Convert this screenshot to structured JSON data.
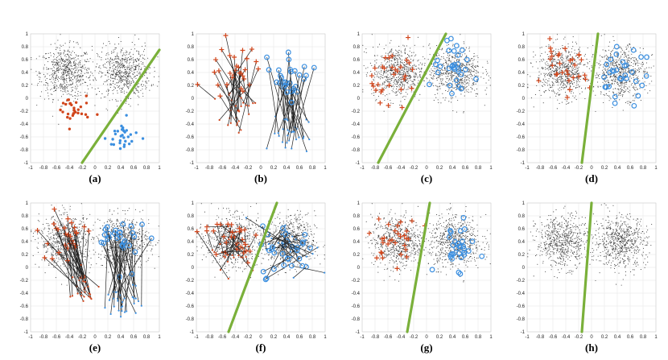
{
  "figure": {
    "description_labels": [
      "(a)",
      "(b)",
      "(c)",
      "(d)",
      "(e)",
      "(f)",
      "(g)",
      "(h)"
    ]
  },
  "colors": {
    "background_points": "#3a3a3a",
    "red": "#d1451b",
    "blue": "#3b8fe0",
    "boundary": "#7ab03a",
    "grid": "#e6e6e6",
    "arrow": "#222222"
  },
  "chart_data": [
    {
      "id": "a",
      "label": "(a)",
      "type": "scatter",
      "xlim": [
        -1,
        1
      ],
      "ylim": [
        -1,
        1
      ],
      "xticks": [
        -1,
        -0.8,
        -0.6,
        -0.4,
        -0.2,
        0,
        0.2,
        0.4,
        0.6,
        0.8,
        1
      ],
      "yticks": [
        1,
        0.8,
        0.6,
        0.4,
        0.2,
        0,
        -0.2,
        -0.4,
        -0.6,
        -0.8,
        -1
      ],
      "background_clusters": [
        {
          "cx": -0.45,
          "cy": 0.4,
          "spread": 0.2
        },
        {
          "cx": 0.45,
          "cy": 0.4,
          "spread": 0.2
        }
      ],
      "boundary": {
        "x1": -0.2,
        "y1": -1.0,
        "x2": 1.0,
        "y2": 0.75
      },
      "red_class": {
        "marker": "dot",
        "center": [
          -0.35,
          -0.2
        ],
        "spread": [
          0.13,
          0.13
        ]
      },
      "blue_class": {
        "marker": "dot",
        "center": [
          0.45,
          -0.6
        ],
        "spread": [
          0.13,
          0.13
        ]
      }
    },
    {
      "id": "b",
      "label": "(b)",
      "type": "scatter",
      "xlim": [
        -1,
        1
      ],
      "ylim": [
        -1,
        1
      ],
      "xticks": [
        -1,
        -0.8,
        -0.6,
        -0.4,
        -0.2,
        0,
        0.2,
        0.4,
        0.6,
        0.8,
        1
      ],
      "yticks": [
        1,
        0.8,
        0.6,
        0.4,
        0.2,
        0,
        -0.2,
        -0.4,
        -0.6,
        -0.8,
        -1
      ],
      "background_clusters": [],
      "boundary": null,
      "red_class": {
        "marker": "plus",
        "center": [
          -0.45,
          0.45
        ],
        "spread": [
          0.2,
          0.2
        ],
        "arrow_from": [
          -0.35,
          -0.2
        ],
        "arrow_spread": [
          0.12,
          0.15
        ]
      },
      "blue_class": {
        "marker": "circle",
        "center": [
          0.45,
          0.4
        ],
        "spread": [
          0.2,
          0.2
        ],
        "arrow_from": [
          0.45,
          -0.55
        ],
        "arrow_spread": [
          0.14,
          0.15
        ]
      }
    },
    {
      "id": "c",
      "label": "(c)",
      "type": "scatter",
      "xlim": [
        -1,
        1
      ],
      "ylim": [
        -1,
        1
      ],
      "xticks": [
        -1,
        -0.8,
        -0.6,
        -0.4,
        -0.2,
        0,
        0.2,
        0.4,
        0.6,
        0.8,
        1
      ],
      "yticks": [
        1,
        0.8,
        0.6,
        0.4,
        0.2,
        0,
        -0.2,
        -0.4,
        -0.6,
        -0.8,
        -1
      ],
      "background_clusters": [
        {
          "cx": -0.45,
          "cy": 0.4,
          "spread": 0.2
        },
        {
          "cx": 0.45,
          "cy": 0.4,
          "spread": 0.2
        }
      ],
      "boundary": {
        "x1": -0.75,
        "y1": -1.0,
        "x2": 0.3,
        "y2": 1.0
      },
      "red_class": {
        "marker": "plus",
        "center": [
          -0.45,
          0.4
        ],
        "spread": [
          0.2,
          0.2
        ]
      },
      "blue_class": {
        "marker": "circle",
        "center": [
          0.45,
          0.4
        ],
        "spread": [
          0.2,
          0.2
        ]
      }
    },
    {
      "id": "d",
      "label": "(d)",
      "type": "scatter",
      "xlim": [
        -1,
        1
      ],
      "ylim": [
        -1,
        1
      ],
      "xticks": [
        -1,
        -0.8,
        -0.6,
        -0.4,
        -0.2,
        0,
        0.2,
        0.4,
        0.6,
        0.8,
        1
      ],
      "yticks": [
        1,
        0.8,
        0.6,
        0.4,
        0.2,
        0,
        -0.2,
        -0.4,
        -0.6,
        -0.8,
        -1
      ],
      "background_clusters": [
        {
          "cx": -0.45,
          "cy": 0.4,
          "spread": 0.2
        },
        {
          "cx": 0.45,
          "cy": 0.4,
          "spread": 0.2
        }
      ],
      "boundary": {
        "x1": -0.15,
        "y1": -1.0,
        "x2": 0.1,
        "y2": 1.0
      },
      "red_class": {
        "marker": "plus",
        "center": [
          -0.45,
          0.4
        ],
        "spread": [
          0.2,
          0.2
        ]
      },
      "blue_class": {
        "marker": "circle",
        "center": [
          0.45,
          0.4
        ],
        "spread": [
          0.2,
          0.2
        ]
      }
    },
    {
      "id": "e",
      "label": "(e)",
      "type": "scatter",
      "xlim": [
        -1,
        1
      ],
      "ylim": [
        -1,
        1
      ],
      "xticks": [
        -1,
        -0.8,
        -0.6,
        -0.4,
        -0.2,
        0,
        0.2,
        0.4,
        0.6,
        0.8,
        1
      ],
      "yticks": [
        1,
        0.8,
        0.6,
        0.4,
        0.2,
        0,
        -0.2,
        -0.4,
        -0.6,
        -0.8,
        -1
      ],
      "background_clusters": [
        {
          "cx": -0.45,
          "cy": 0.4,
          "spread": 0.2
        },
        {
          "cx": 0.45,
          "cy": 0.4,
          "spread": 0.2
        }
      ],
      "boundary": null,
      "red_class": {
        "marker": "plus",
        "center": [
          -0.5,
          0.45
        ],
        "spread": [
          0.2,
          0.2
        ],
        "arrow_from": [
          -0.2,
          -0.3
        ],
        "arrow_spread": [
          0.1,
          0.15
        ]
      },
      "blue_class": {
        "marker": "circle",
        "center": [
          0.45,
          0.4
        ],
        "spread": [
          0.2,
          0.2
        ],
        "arrow_from": [
          0.45,
          -0.55
        ],
        "arrow_spread": [
          0.14,
          0.15
        ]
      }
    },
    {
      "id": "f",
      "label": "(f)",
      "type": "scatter",
      "xlim": [
        -1,
        1
      ],
      "ylim": [
        -1,
        1
      ],
      "xticks": [
        -1,
        -0.8,
        -0.6,
        -0.4,
        -0.2,
        0,
        0.2,
        0.4,
        0.6,
        0.8,
        1
      ],
      "yticks": [
        1,
        0.8,
        0.6,
        0.4,
        0.2,
        0,
        -0.2,
        -0.4,
        -0.6,
        -0.8,
        -1
      ],
      "background_clusters": [
        {
          "cx": -0.45,
          "cy": 0.4,
          "spread": 0.2
        },
        {
          "cx": 0.45,
          "cy": 0.4,
          "spread": 0.2
        }
      ],
      "boundary": {
        "x1": -0.5,
        "y1": -1.0,
        "x2": 0.25,
        "y2": 1.0
      },
      "red_class": {
        "marker": "plus",
        "center": [
          -0.45,
          0.45
        ],
        "spread": [
          0.22,
          0.2
        ],
        "arrow_from": [
          -0.4,
          0.3
        ],
        "arrow_spread": [
          0.2,
          0.2
        ]
      },
      "blue_class": {
        "marker": "circle",
        "center": [
          0.45,
          0.25
        ],
        "spread": [
          0.22,
          0.2
        ],
        "arrow_from": [
          0.45,
          0.35
        ],
        "arrow_spread": [
          0.2,
          0.2
        ]
      }
    },
    {
      "id": "g",
      "label": "(g)",
      "type": "scatter",
      "xlim": [
        -1,
        1
      ],
      "ylim": [
        -1,
        1
      ],
      "xticks": [
        -1,
        -0.8,
        -0.6,
        -0.4,
        -0.2,
        0,
        0.2,
        0.4,
        0.6,
        0.8,
        1
      ],
      "yticks": [
        1,
        0.8,
        0.6,
        0.4,
        0.2,
        0,
        -0.2,
        -0.4,
        -0.6,
        -0.8,
        -1
      ],
      "background_clusters": [
        {
          "cx": -0.45,
          "cy": 0.4,
          "spread": 0.2
        },
        {
          "cx": 0.45,
          "cy": 0.4,
          "spread": 0.2
        }
      ],
      "boundary": {
        "x1": -0.3,
        "y1": -1.0,
        "x2": 0.05,
        "y2": 1.0
      },
      "red_class": {
        "marker": "plus",
        "center": [
          -0.45,
          0.4
        ],
        "spread": [
          0.18,
          0.18
        ]
      },
      "blue_class": {
        "marker": "circle",
        "center": [
          0.45,
          0.3
        ],
        "spread": [
          0.15,
          0.17
        ]
      }
    },
    {
      "id": "h",
      "label": "(h)",
      "type": "scatter",
      "xlim": [
        -1,
        1
      ],
      "ylim": [
        -1,
        1
      ],
      "xticks": [
        -1,
        -0.8,
        -0.6,
        -0.4,
        -0.2,
        0,
        0.2,
        0.4,
        0.6,
        0.8,
        1
      ],
      "yticks": [
        1,
        0.8,
        0.6,
        0.4,
        0.2,
        0,
        -0.2,
        -0.4,
        -0.6,
        -0.8,
        -1
      ],
      "background_clusters": [
        {
          "cx": -0.45,
          "cy": 0.4,
          "spread": 0.2
        },
        {
          "cx": 0.45,
          "cy": 0.4,
          "spread": 0.2
        }
      ],
      "boundary": {
        "x1": -0.15,
        "y1": -1.0,
        "x2": 0.0,
        "y2": 1.0
      },
      "red_class": null,
      "blue_class": null
    }
  ]
}
